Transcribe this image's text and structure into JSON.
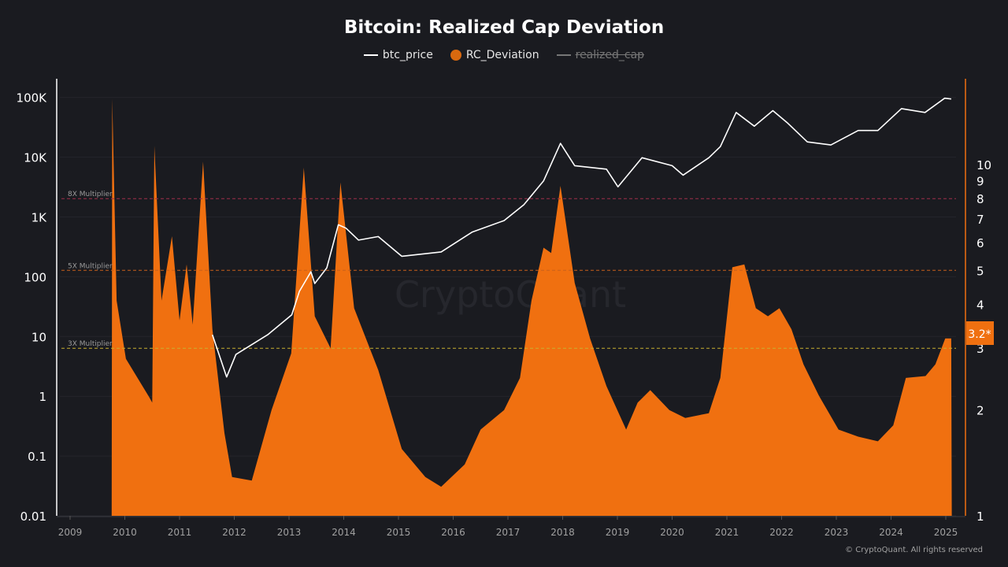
{
  "chart_data": {
    "type": "area+line",
    "title": "Bitcoin: Realized Cap Deviation",
    "legend": [
      {
        "name": "btc_price",
        "color": "#ffffff",
        "enabled": true
      },
      {
        "name": "RC_Deviation",
        "color": "#f07010",
        "enabled": true
      },
      {
        "name": "realized_cap",
        "color": "#777777",
        "enabled": false
      }
    ],
    "legend_placement": "top-center",
    "x_ticks": [
      "2009",
      "2010",
      "2011",
      "2012",
      "2013",
      "2014",
      "2015",
      "2016",
      "2017",
      "2018",
      "2019",
      "2020",
      "2021",
      "2022",
      "2023",
      "2024",
      "2025"
    ],
    "xlim": [
      2009,
      2025.4
    ],
    "left_axis": {
      "scale": "log",
      "ylim": [
        0.01,
        100000
      ],
      "ticks": [
        {
          "v": 0.01,
          "label": "0.01"
        },
        {
          "v": 0.1,
          "label": "0.1"
        },
        {
          "v": 1,
          "label": "1"
        },
        {
          "v": 10,
          "label": "10"
        },
        {
          "v": 100,
          "label": "100"
        },
        {
          "v": 1000,
          "label": "1K"
        },
        {
          "v": 10000,
          "label": "10K"
        },
        {
          "v": 100000,
          "label": "100K"
        }
      ]
    },
    "right_axis": {
      "scale": "log",
      "ylim": [
        1,
        14
      ],
      "ticks": [
        "1",
        "2",
        "3",
        "4",
        "5",
        "6",
        "7",
        "8",
        "9",
        "10"
      ],
      "current_value_label": "3.2*"
    },
    "reference_lines": [
      {
        "label": "8X Multiplier",
        "value": 8,
        "color": "#a0304a"
      },
      {
        "label": "5X Multiplier",
        "value": 5,
        "color": "#c8601a"
      },
      {
        "label": "3X Multiplier",
        "value": 3,
        "color": "#c8b030"
      }
    ],
    "series": [
      {
        "name": "btc_price",
        "axis": "left",
        "points": [
          [
            2011.6,
            10.7
          ],
          [
            2011.86,
            2.1
          ],
          [
            2012.03,
            5
          ],
          [
            2012.61,
            10.7
          ],
          [
            2013.05,
            23
          ],
          [
            2013.19,
            57
          ],
          [
            2013.4,
            121
          ],
          [
            2013.47,
            77
          ],
          [
            2013.69,
            141
          ],
          [
            2013.9,
            740
          ],
          [
            2014.04,
            650
          ],
          [
            2014.27,
            410
          ],
          [
            2014.63,
            470
          ],
          [
            2015.06,
            220
          ],
          [
            2015.78,
            260
          ],
          [
            2016.35,
            560
          ],
          [
            2016.93,
            870
          ],
          [
            2017.29,
            1600
          ],
          [
            2017.65,
            4000
          ],
          [
            2017.96,
            17000
          ],
          [
            2018.22,
            7200
          ],
          [
            2018.8,
            6300
          ],
          [
            2019.01,
            3200
          ],
          [
            2019.45,
            9800
          ],
          [
            2020.0,
            7200
          ],
          [
            2020.2,
            5000
          ],
          [
            2020.67,
            9800
          ],
          [
            2020.88,
            15000
          ],
          [
            2021.17,
            56000
          ],
          [
            2021.5,
            33000
          ],
          [
            2021.84,
            60000
          ],
          [
            2022.1,
            38000
          ],
          [
            2022.47,
            18000
          ],
          [
            2022.9,
            16000
          ],
          [
            2023.4,
            28000
          ],
          [
            2023.76,
            28000
          ],
          [
            2024.19,
            65000
          ],
          [
            2024.62,
            56000
          ],
          [
            2024.98,
            97000
          ],
          [
            2025.1,
            94000
          ]
        ]
      },
      {
        "name": "RC_Deviation",
        "axis": "right",
        "points": [
          [
            2009.76,
            1
          ],
          [
            2009.77,
            15.4
          ],
          [
            2009.85,
            4.1
          ],
          [
            2010.02,
            2.8
          ],
          [
            2010.45,
            2.17
          ],
          [
            2010.5,
            2.1
          ],
          [
            2010.54,
            11.3
          ],
          [
            2010.67,
            4.1
          ],
          [
            2010.86,
            6.25
          ],
          [
            2011.0,
            3.6
          ],
          [
            2011.13,
            5.2
          ],
          [
            2011.24,
            3.5
          ],
          [
            2011.43,
            10.2
          ],
          [
            2011.6,
            3.4
          ],
          [
            2011.82,
            1.72
          ],
          [
            2011.96,
            1.29
          ],
          [
            2012.32,
            1.26
          ],
          [
            2012.68,
            2.0
          ],
          [
            2013.04,
            2.9
          ],
          [
            2013.27,
            9.8
          ],
          [
            2013.47,
            3.7
          ],
          [
            2013.76,
            3.0
          ],
          [
            2013.94,
            8.9
          ],
          [
            2014.19,
            3.9
          ],
          [
            2014.63,
            2.6
          ],
          [
            2015.06,
            1.55
          ],
          [
            2015.49,
            1.29
          ],
          [
            2015.78,
            1.21
          ],
          [
            2016.21,
            1.4
          ],
          [
            2016.5,
            1.76
          ],
          [
            2016.93,
            2.0
          ],
          [
            2017.22,
            2.47
          ],
          [
            2017.43,
            4.1
          ],
          [
            2017.65,
            5.8
          ],
          [
            2017.79,
            5.6
          ],
          [
            2017.96,
            8.7
          ],
          [
            2018.22,
            4.6
          ],
          [
            2018.5,
            3.2
          ],
          [
            2018.8,
            2.34
          ],
          [
            2019.16,
            1.76
          ],
          [
            2019.37,
            2.1
          ],
          [
            2019.6,
            2.28
          ],
          [
            2019.95,
            2.0
          ],
          [
            2020.24,
            1.9
          ],
          [
            2020.67,
            1.96
          ],
          [
            2020.88,
            2.47
          ],
          [
            2021.1,
            5.1
          ],
          [
            2021.32,
            5.2
          ],
          [
            2021.53,
            3.9
          ],
          [
            2021.75,
            3.7
          ],
          [
            2021.96,
            3.9
          ],
          [
            2022.18,
            3.4
          ],
          [
            2022.4,
            2.7
          ],
          [
            2022.68,
            2.2
          ],
          [
            2023.04,
            1.76
          ],
          [
            2023.4,
            1.68
          ],
          [
            2023.76,
            1.63
          ],
          [
            2024.04,
            1.81
          ],
          [
            2024.27,
            2.47
          ],
          [
            2024.63,
            2.5
          ],
          [
            2024.81,
            2.7
          ],
          [
            2024.99,
            3.2
          ],
          [
            2025.1,
            3.2
          ],
          [
            2025.11,
            1
          ]
        ]
      }
    ],
    "grid": true
  },
  "watermark": "CryptoQuant",
  "copyright": "© CryptoQuant. All rights reserved"
}
